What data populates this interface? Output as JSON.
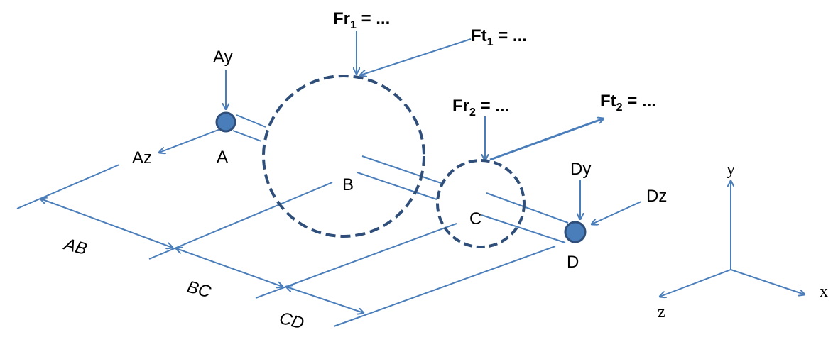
{
  "forces": {
    "fr1": {
      "main": "Fr",
      "sub": "1",
      "suffix": " = ..."
    },
    "ft1": {
      "main": "Ft",
      "sub": "1",
      "suffix": " = ..."
    },
    "fr2": {
      "main": "Fr",
      "sub": "2",
      "suffix": " = ..."
    },
    "ft2": {
      "main": "Ft",
      "sub": "2",
      "suffix": " = ..."
    }
  },
  "reactions": {
    "ay": "Ay",
    "az": "Az",
    "dy": "Dy",
    "dz": "Dz"
  },
  "points": {
    "a": "A",
    "b": "B",
    "c": "C",
    "d": "D"
  },
  "dimensions": {
    "ab": "AB",
    "bc": "BC",
    "cd": "CD"
  },
  "axes": {
    "x": "x",
    "y": "y",
    "z": "z"
  },
  "colors": {
    "line": "#4a7ebb",
    "gear": "#2f4f7a",
    "bearing_fill": "#4a7ebb",
    "bearing_stroke": "#2f4f7a"
  }
}
